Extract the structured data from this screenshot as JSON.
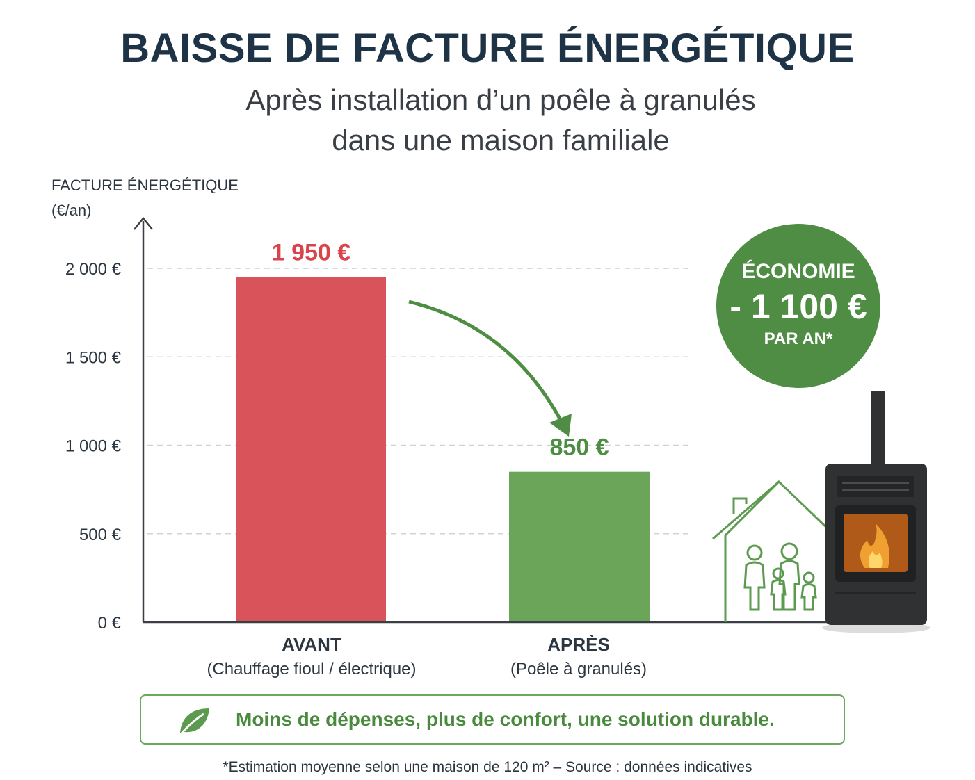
{
  "title": "BAISSE DE FACTURE ÉNERGÉTIQUE",
  "subtitle_line1": "Après installation d’un poêle à granulés",
  "subtitle_line2": "dans une maison familiale",
  "badge": {
    "line1": "ÉCONOMIE",
    "line2": "- 1 100 €",
    "line3": "PAR AN*",
    "color": "#4e8d43"
  },
  "banner": {
    "text": "Moins de dépenses, plus de confort, une solution durable.",
    "icon": "leaf-icon"
  },
  "footnote": "*Estimation moyenne selon une maison de 120 m² – Source : données indicatives",
  "chart_data": {
    "type": "bar",
    "ylabel_line1": "FACTURE ÉNERGÉTIQUE",
    "ylabel_line2": "(€/an)",
    "ylim": [
      0,
      2000
    ],
    "yticks": [
      0,
      500,
      1000,
      1500,
      2000
    ],
    "ytick_labels": [
      "0 €",
      "500 €",
      "1 000 €",
      "1 500 €",
      "2 000 €"
    ],
    "grid": true,
    "categories": [
      {
        "name": "AVANT",
        "desc": "(Chauffage fioul / électrique)",
        "value": 1950,
        "label": "1 950 €",
        "color": "#d9535a",
        "label_color": "#d9434b"
      },
      {
        "name": "APRÈS",
        "desc": "(Poêle à granulés)",
        "value": 850,
        "label": "850 €",
        "color": "#6aa55a",
        "label_color": "#4e8d43"
      }
    ]
  }
}
